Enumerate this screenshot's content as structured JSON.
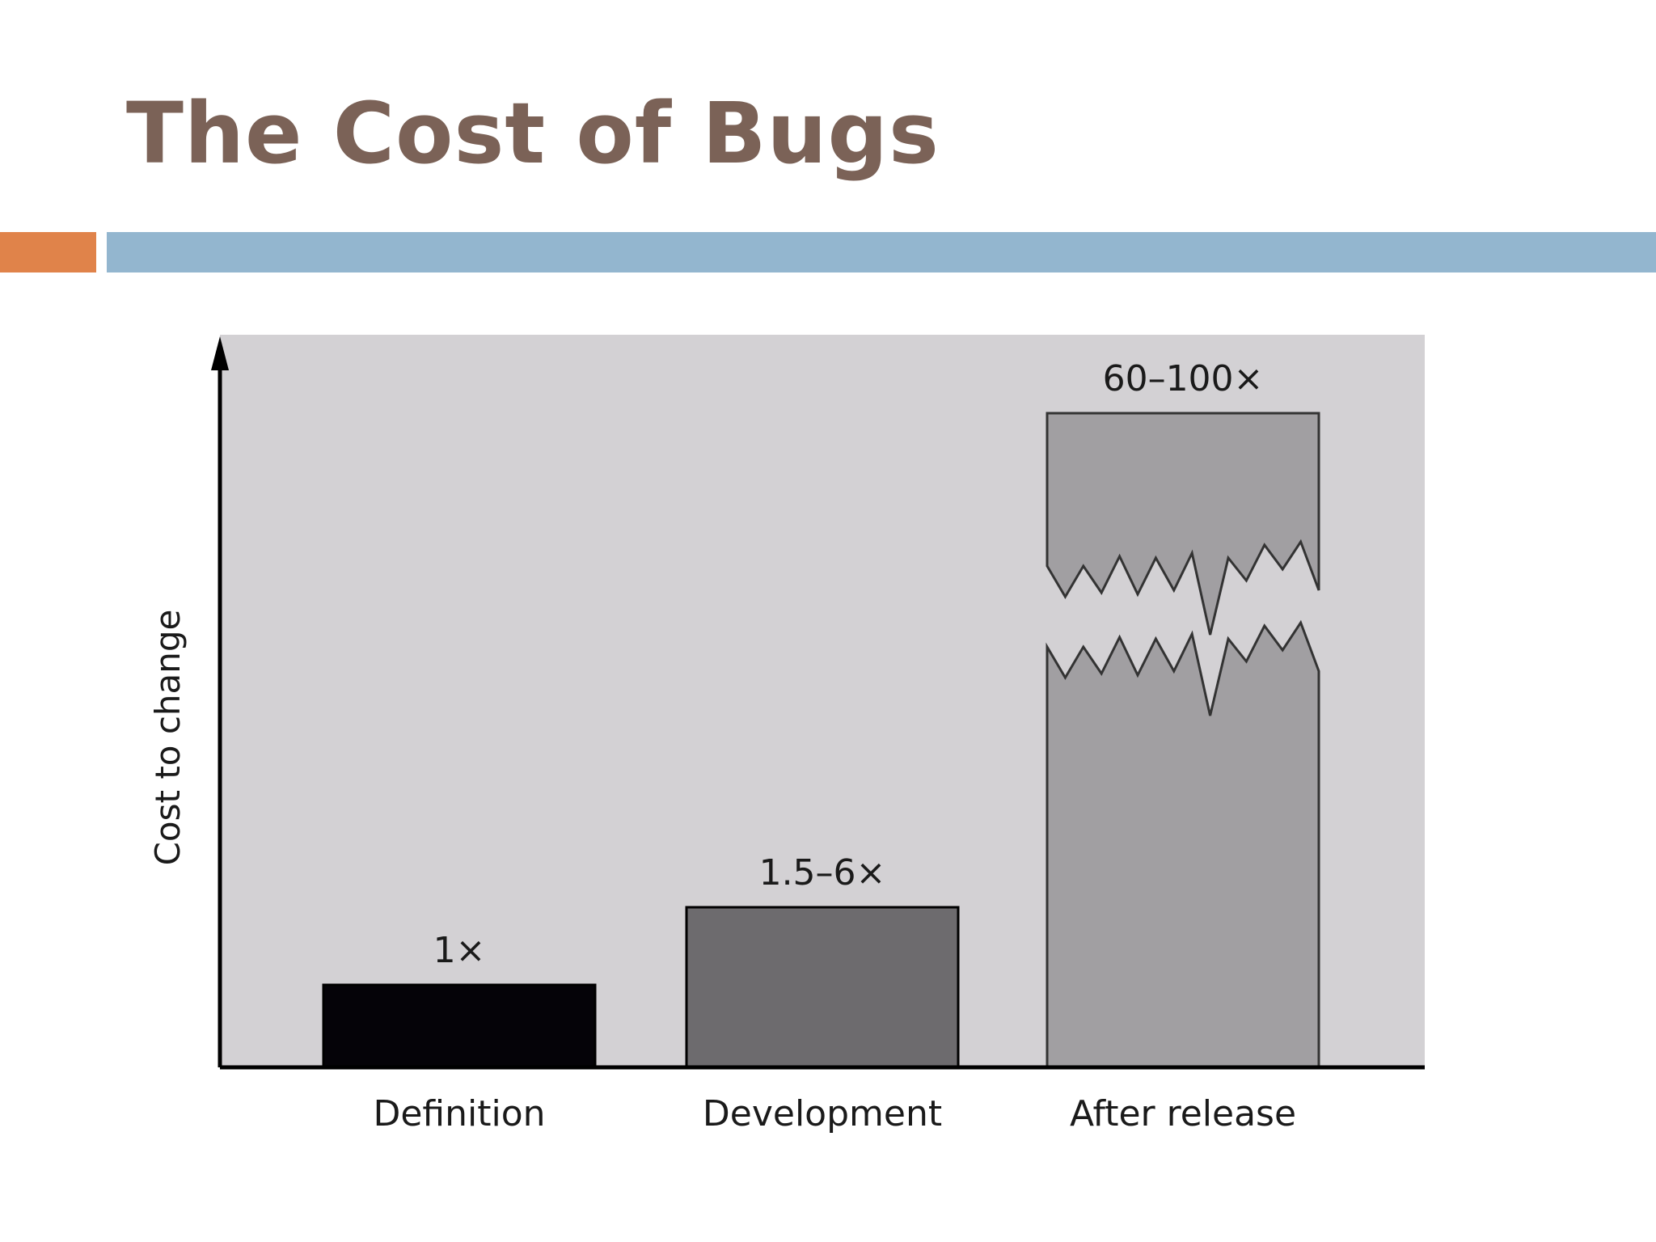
{
  "slide": {
    "title": "The Cost of Bugs",
    "colors": {
      "title": "#7b6257",
      "accent_orange": "#e0834a",
      "accent_blue": "#93b6cf",
      "plot_background": "#d3d1d4",
      "axis": "#000000"
    }
  },
  "chart_data": {
    "type": "bar",
    "title": "",
    "xlabel": "",
    "ylabel": "Cost to change",
    "categories": [
      "Definition",
      "Development",
      "After release"
    ],
    "values": [
      1,
      2,
      80
    ],
    "data_labels": [
      "1×",
      "1.5–6×",
      "60–100×"
    ],
    "bar_colors": [
      "#050308",
      "#6d6b6e",
      "#a19fa2"
    ],
    "axis_break": {
      "category": "After release"
    },
    "grid": false,
    "legend": "none"
  }
}
